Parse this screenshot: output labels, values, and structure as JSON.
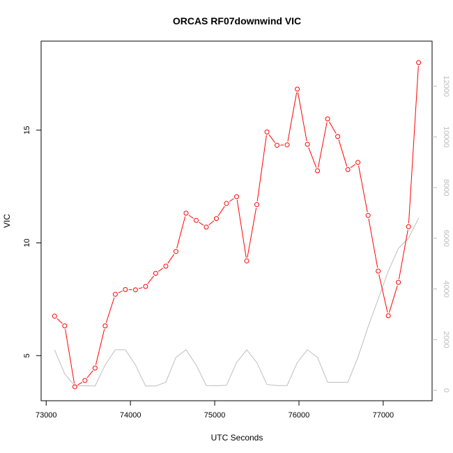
{
  "chart_data": {
    "type": "line",
    "title": "ORCAS RF07downwind VIC",
    "xlabel": "UTC Seconds",
    "ylabel": "VIC",
    "ylabel_right": "",
    "xlim": [
      72940,
      77580
    ],
    "ylim": [
      3.0,
      18.95
    ],
    "ylim_right": [
      -410,
      13780
    ],
    "xticks": [
      73000,
      74000,
      75000,
      76000,
      77000
    ],
    "yticks": [
      5,
      10,
      15
    ],
    "yticks_right": [
      0,
      2000,
      4000,
      6000,
      8000,
      10000,
      12000
    ],
    "grid": false,
    "colors": {
      "primary": "#ff0000",
      "secondary": "#bebebe"
    },
    "series": [
      {
        "axis": "left",
        "style": "line+points",
        "x": [
          73100,
          73220,
          73340,
          73460,
          73580,
          73700,
          73820,
          73940,
          74060,
          74180,
          74300,
          74420,
          74540,
          74660,
          74780,
          74900,
          75020,
          75140,
          75260,
          75380,
          75500,
          75620,
          75740,
          75860,
          75980,
          76100,
          76220,
          76340,
          76460,
          76580,
          76700,
          76820,
          76940,
          77060,
          77180,
          77300,
          77420
        ],
        "values": [
          6.75,
          6.32,
          3.62,
          3.9,
          4.45,
          6.32,
          7.72,
          7.93,
          7.92,
          8.07,
          8.65,
          8.97,
          9.62,
          11.32,
          11.0,
          10.7,
          11.08,
          11.75,
          12.05,
          9.2,
          11.7,
          14.92,
          14.33,
          14.35,
          16.82,
          14.37,
          13.2,
          15.5,
          14.72,
          13.25,
          13.57,
          11.22,
          8.75,
          6.77,
          8.25,
          10.72,
          18.0
        ]
      },
      {
        "axis": "right",
        "style": "line",
        "x": [
          73100,
          73220,
          73340,
          73460,
          73580,
          73700,
          73820,
          73940,
          74060,
          74180,
          74300,
          74420,
          74540,
          74660,
          74780,
          74900,
          75020,
          75140,
          75260,
          75380,
          75500,
          75620,
          75740,
          75860,
          75980,
          76100,
          76220,
          76340,
          76460,
          76580,
          76700,
          76820,
          76940,
          77060,
          77180,
          77300,
          77420
        ],
        "values": [
          1600,
          650,
          170,
          180,
          170,
          1000,
          1600,
          1600,
          1000,
          170,
          170,
          320,
          1300,
          1600,
          1000,
          190,
          180,
          200,
          1100,
          1600,
          1100,
          230,
          190,
          190,
          1100,
          1600,
          1300,
          320,
          320,
          320,
          1300,
          2500,
          3600,
          4700,
          5600,
          6000,
          6800
        ]
      }
    ]
  }
}
